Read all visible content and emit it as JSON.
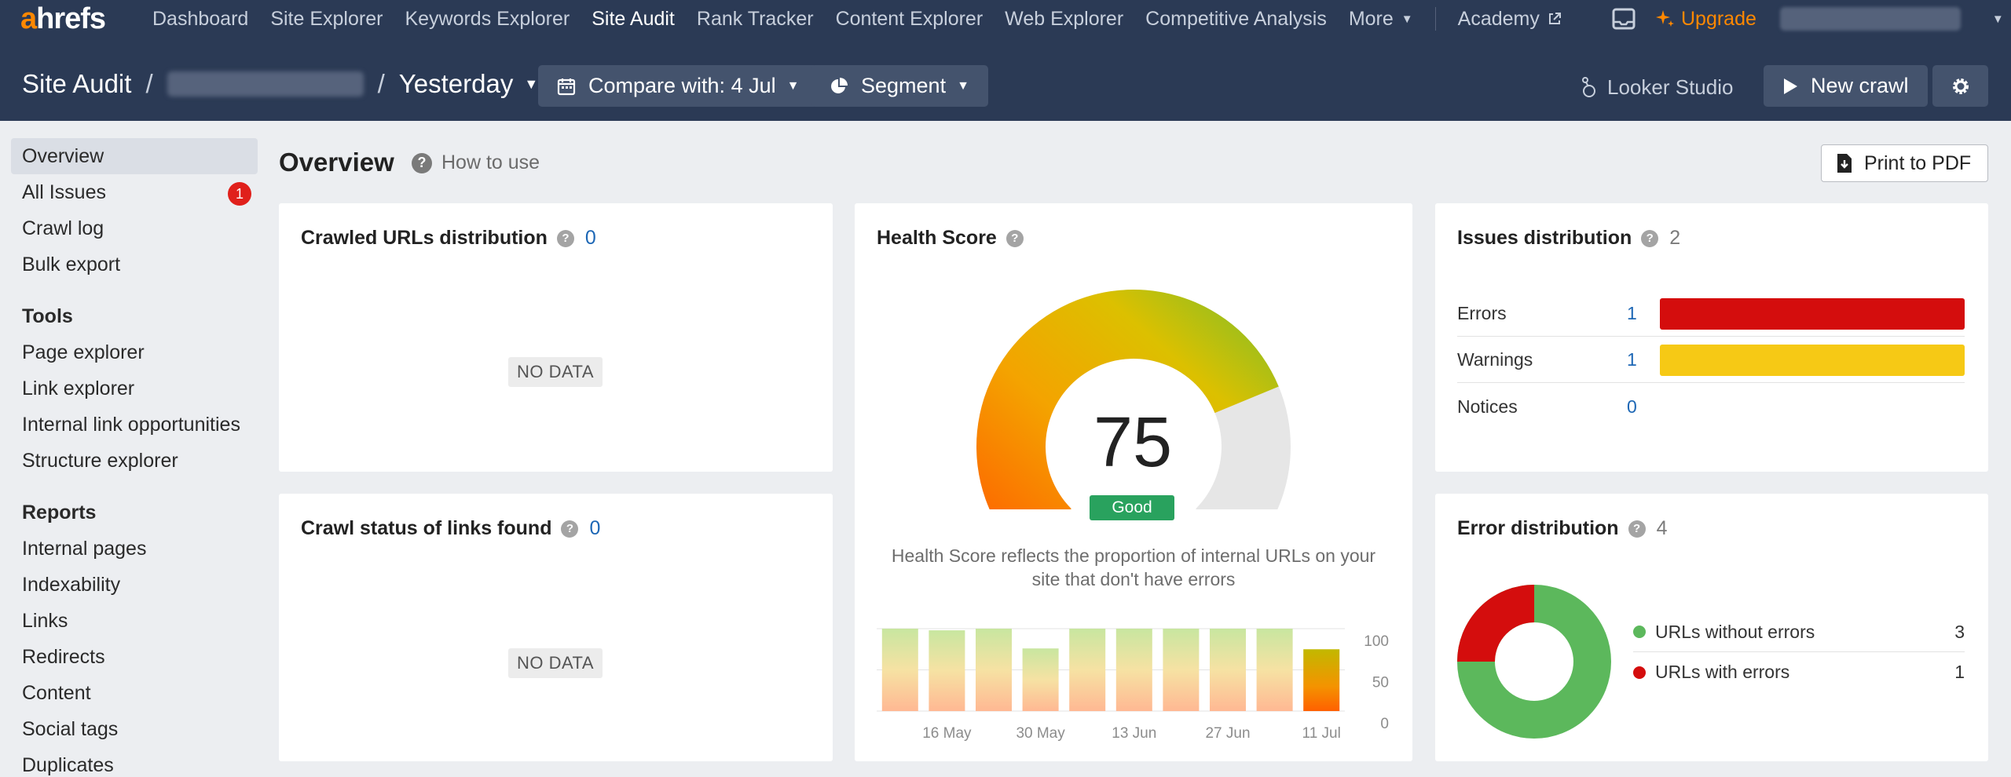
{
  "nav": {
    "logo_prefix": "a",
    "logo_rest": "hrefs",
    "links": [
      "Dashboard",
      "Site Explorer",
      "Keywords Explorer",
      "Site Audit",
      "Rank Tracker",
      "Content Explorer",
      "Web Explorer",
      "Competitive Analysis"
    ],
    "more": "More",
    "academy": "Academy",
    "upgrade": "Upgrade"
  },
  "header": {
    "section": "Site Audit",
    "separator": "/",
    "crawl": "Yesterday",
    "compare": "Compare with: 4 Jul",
    "segment": "Segment",
    "looker": "Looker Studio",
    "new_crawl": "New crawl"
  },
  "sidebar": {
    "main": [
      {
        "label": "Overview",
        "active": true
      },
      {
        "label": "All Issues",
        "badge": "1"
      },
      {
        "label": "Crawl log"
      },
      {
        "label": "Bulk export"
      }
    ],
    "tools_title": "Tools",
    "tools": [
      "Page explorer",
      "Link explorer",
      "Internal link opportunities",
      "Structure explorer"
    ],
    "reports_title": "Reports",
    "reports": [
      "Internal pages",
      "Indexability",
      "Links",
      "Redirects",
      "Content",
      "Social tags",
      "Duplicates"
    ]
  },
  "main": {
    "title": "Overview",
    "how_to_use": "How to use",
    "print": "Print to PDF"
  },
  "cards": {
    "crawled": {
      "title": "Crawled URLs distribution",
      "count": "0",
      "nodata": "NO DATA"
    },
    "crawl_status": {
      "title": "Crawl status of links found",
      "count": "0",
      "nodata": "NO DATA"
    },
    "health": {
      "title": "Health Score",
      "score": "75",
      "score_value": 75,
      "grade": "Good",
      "description": "Health Score reflects the proportion of internal URLs on your site that don't have errors"
    },
    "issues": {
      "title": "Issues distribution",
      "count": "2",
      "rows": [
        {
          "label": "Errors",
          "value": "1",
          "color": "#d40d0d"
        },
        {
          "label": "Warnings",
          "value": "1",
          "color": "#f6c915"
        },
        {
          "label": "Notices",
          "value": "0",
          "color": ""
        }
      ]
    },
    "errors": {
      "title": "Error distribution",
      "count": "4",
      "legend": [
        {
          "label": "URLs without errors",
          "value": "3",
          "color": "#5cb85c"
        },
        {
          "label": "URLs with errors",
          "value": "1",
          "color": "#d40d0d"
        }
      ]
    }
  },
  "chart_data": {
    "type": "bar",
    "x_tick_labels": [
      "16 May",
      "30 May",
      "13 Jun",
      "27 Jun",
      "11 Jul"
    ],
    "values": [
      100,
      98,
      100,
      76,
      100,
      100,
      100,
      100,
      100,
      75
    ],
    "y_ticks": [
      "100",
      "50",
      "0"
    ],
    "ylim": [
      0,
      100
    ],
    "grid": true
  },
  "colors": {
    "nav_bg": "#2b3a55",
    "accent": "#ff8800",
    "good": "#29a25e",
    "link_blue": "#1d67b5"
  }
}
